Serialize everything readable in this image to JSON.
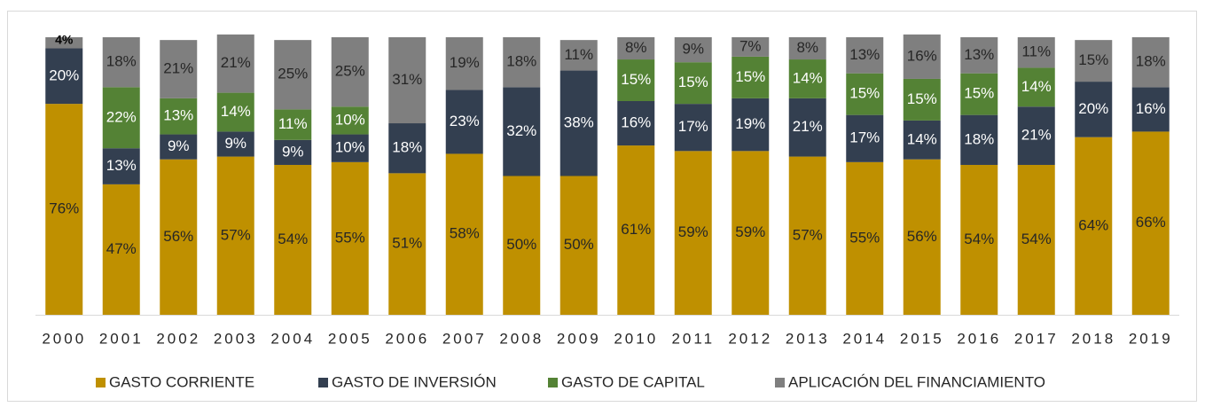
{
  "chart_data": {
    "type": "stacked_bar",
    "categories": [
      "2000",
      "2001",
      "2002",
      "2003",
      "2004",
      "2005",
      "2006",
      "2007",
      "2008",
      "2009",
      "2010",
      "2011",
      "2012",
      "2013",
      "2014",
      "2015",
      "2016",
      "2017",
      "2018",
      "2019"
    ],
    "ylim": [
      0,
      100
    ],
    "series": [
      {
        "name": "GASTO CORRIENTE",
        "color": "#bf9000",
        "values": [
          76,
          47,
          56,
          57,
          54,
          55,
          51,
          58,
          50,
          50,
          61,
          59,
          59,
          57,
          55,
          56,
          54,
          54,
          64,
          66
        ],
        "value_labels": [
          "76%",
          "47%",
          "56%",
          "57%",
          "54%",
          "55%",
          "51%",
          "58%",
          "50%",
          "50%",
          "61%",
          "59%",
          "59%",
          "57%",
          "55%",
          "56%",
          "54%",
          "54%",
          "64%",
          "66%"
        ]
      },
      {
        "name": "GASTO DE INVERSIÓN",
        "color": "#333f50",
        "values": [
          20,
          13,
          9,
          9,
          9,
          10,
          18,
          23,
          32,
          38,
          16,
          17,
          19,
          21,
          17,
          14,
          18,
          21,
          20,
          16
        ],
        "value_labels": [
          "20%",
          "13%",
          "9%",
          "9%",
          "9%",
          "10%",
          "18%",
          "23%",
          "32%",
          "38%",
          "16%",
          "17%",
          "19%",
          "21%",
          "17%",
          "14%",
          "18%",
          "21%",
          "20%",
          "16%"
        ]
      },
      {
        "name": "GASTO DE CAPITAL",
        "color": "#548235",
        "values": [
          null,
          22,
          13,
          14,
          11,
          10,
          null,
          null,
          null,
          null,
          15,
          15,
          15,
          14,
          15,
          15,
          15,
          14,
          null,
          null
        ],
        "value_labels": [
          null,
          "22%",
          "13%",
          "14%",
          "11%",
          "10%",
          null,
          null,
          null,
          null,
          "15%",
          "15%",
          "15%",
          "14%",
          "15%",
          "15%",
          "15%",
          "14%",
          null,
          null
        ]
      },
      {
        "name": "APLICACIÓN DEL FINANCIAMIENTO",
        "color": "#7f7f7f",
        "values": [
          4,
          18,
          21,
          21,
          25,
          25,
          31,
          19,
          18,
          11,
          8,
          9,
          7,
          8,
          13,
          16,
          13,
          11,
          15,
          18
        ],
        "value_labels": [
          "4%",
          "18%",
          "21%",
          "21%",
          "25%",
          "25%",
          "31%",
          "19%",
          "18%",
          "11%",
          "8%",
          "9%",
          "7%",
          "8%",
          "13%",
          "16%",
          "13%",
          "11%",
          "15%",
          "18%"
        ]
      }
    ]
  }
}
